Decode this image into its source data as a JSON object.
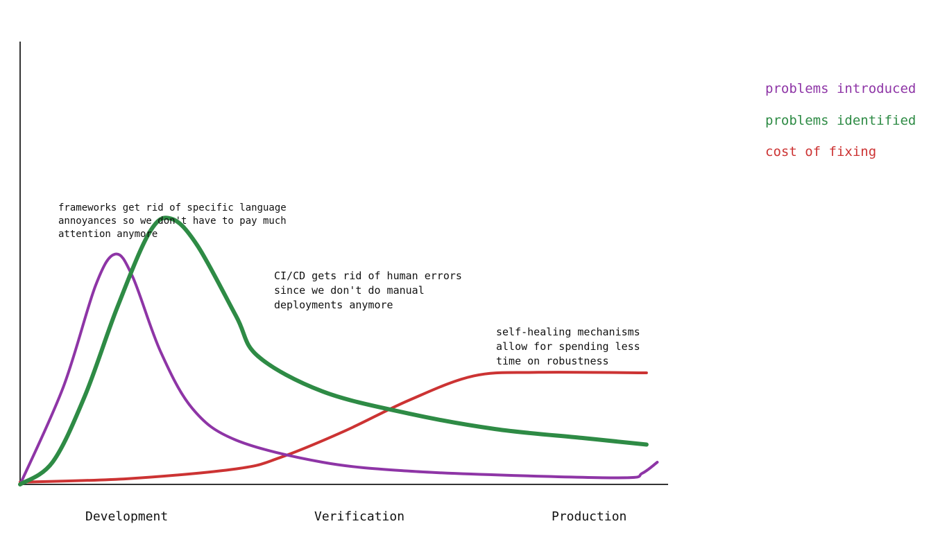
{
  "chart_data": {
    "type": "line",
    "title": "",
    "xlabel": "",
    "ylabel": "",
    "categories": [
      "Development",
      "Verification",
      "Production"
    ],
    "x_domain": [
      0,
      3
    ],
    "ylim": [
      0,
      100
    ],
    "grid": false,
    "legend_position": "top-right",
    "series": [
      {
        "name": "problems introduced",
        "color": "#8e35a6",
        "points": [
          [
            0,
            0
          ],
          [
            0.2,
            22
          ],
          [
            0.35,
            45
          ],
          [
            0.44,
            52
          ],
          [
            0.52,
            47
          ],
          [
            0.65,
            30
          ],
          [
            0.8,
            17
          ],
          [
            1.0,
            10
          ],
          [
            1.4,
            5
          ],
          [
            1.8,
            3
          ],
          [
            2.3,
            2
          ],
          [
            2.8,
            1.5
          ],
          [
            2.88,
            2.5
          ],
          [
            2.95,
            5
          ]
        ]
      },
      {
        "name": "problems identified",
        "color": "#2e8b45",
        "points": [
          [
            0,
            0
          ],
          [
            0.15,
            5
          ],
          [
            0.3,
            20
          ],
          [
            0.45,
            40
          ],
          [
            0.6,
            57
          ],
          [
            0.7,
            60
          ],
          [
            0.82,
            54
          ],
          [
            1.0,
            38
          ],
          [
            1.1,
            29
          ],
          [
            1.4,
            21
          ],
          [
            1.8,
            16
          ],
          [
            2.2,
            12.5
          ],
          [
            2.6,
            10.5
          ],
          [
            2.9,
            9
          ]
        ]
      },
      {
        "name": "cost of fixing",
        "color": "#cc3333",
        "points": [
          [
            0,
            0.5
          ],
          [
            0.5,
            1.3
          ],
          [
            1.0,
            3.5
          ],
          [
            1.2,
            6
          ],
          [
            1.5,
            12
          ],
          [
            1.8,
            19
          ],
          [
            2.1,
            24.5
          ],
          [
            2.4,
            25.3
          ],
          [
            2.9,
            25.2
          ]
        ]
      }
    ]
  },
  "annotations": [
    {
      "text": "frameworks get rid of specific language\nannoyances so we don't have to pay much\nattention anymore"
    },
    {
      "text": "CI/CD gets rid of human errors\nsince we don't do manual\ndeployments anymore"
    },
    {
      "text": "self-healing mechanisms\nallow for spending less\ntime on robustness"
    }
  ]
}
